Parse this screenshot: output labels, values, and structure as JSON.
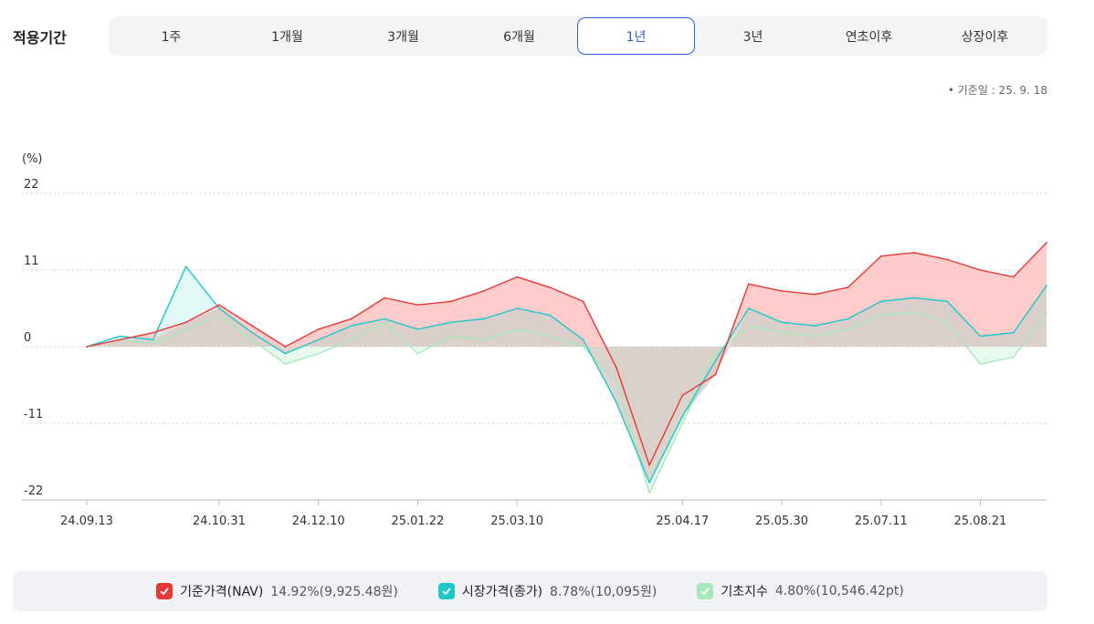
{
  "period": {
    "label": "적용기간",
    "options": [
      "1주",
      "1개월",
      "3개월",
      "6개월",
      "1년",
      "3년",
      "연초이후",
      "상장이후"
    ],
    "selected": "1년"
  },
  "base_date": "• 기준일 : 25. 9. 18",
  "colors": {
    "nav": "#e53935",
    "market": "#1ec8c8",
    "index": "#a6e8ba",
    "nav_fill": "#ffc9c9",
    "overlap_fill": "#d9cbc5"
  },
  "legend": [
    {
      "check": "check-icon",
      "name": "기준가격(NAV)",
      "value": "14.92%(9,925.48원)",
      "color": "#e53935"
    },
    {
      "check": "check-icon",
      "name": "시장가격(종가)",
      "value": "8.78%(10,095원)",
      "color": "#1ec8c8"
    },
    {
      "check": "check-icon",
      "name": "기초지수",
      "value": "4.80%(10,546.42pt)",
      "color": "#a6e8ba"
    }
  ],
  "chart_data": {
    "type": "area",
    "unit": "(%)",
    "ylim": [
      -22,
      22
    ],
    "yticks": [
      "22",
      "11",
      "0",
      "-11",
      "-22"
    ],
    "xticks": [
      "24.09.13",
      "24.10.31",
      "24.12.10",
      "25.01.22",
      "25.03.10",
      "25.04.17",
      "25.05.30",
      "25.07.11",
      "25.08.21"
    ],
    "grid": true,
    "x": [
      "24.09.13",
      "24.09.27",
      "24.10.11",
      "24.10.15",
      "24.10.31",
      "24.11.15",
      "24.11.29",
      "24.12.10",
      "24.12.24",
      "25.01.08",
      "25.01.22",
      "25.02.05",
      "25.02.19",
      "25.03.10",
      "25.03.20",
      "25.04.04",
      "25.04.08",
      "25.04.09",
      "25.04.17",
      "25.05.02",
      "25.05.16",
      "25.05.30",
      "25.06.13",
      "25.06.27",
      "25.07.11",
      "25.07.25",
      "25.08.08",
      "25.08.21",
      "25.09.04",
      "25.09.18"
    ],
    "series": [
      {
        "name": "기준가격(NAV)",
        "values": [
          0,
          1.0,
          2.0,
          3.5,
          6.0,
          3.0,
          0.0,
          2.5,
          4.0,
          7.0,
          6.0,
          6.5,
          8.0,
          10.0,
          8.5,
          6.5,
          -3.0,
          -17.0,
          -7.0,
          -4.0,
          9.0,
          8.0,
          7.5,
          8.5,
          13.0,
          13.5,
          12.5,
          11.0,
          10.0,
          14.92
        ]
      },
      {
        "name": "시장가격(종가)",
        "values": [
          0,
          1.5,
          1.0,
          11.5,
          5.5,
          2.0,
          -1.0,
          1.0,
          3.0,
          4.0,
          2.5,
          3.5,
          4.0,
          5.5,
          4.5,
          1.0,
          -8.0,
          -19.5,
          -10.0,
          -2.0,
          5.5,
          3.5,
          3.0,
          4.0,
          6.5,
          7.0,
          6.5,
          1.5,
          2.0,
          8.78
        ]
      },
      {
        "name": "기초지수",
        "values": [
          0,
          1.0,
          0.5,
          2.5,
          4.5,
          1.0,
          -2.5,
          -1.0,
          1.0,
          3.5,
          -1.0,
          1.5,
          1.0,
          2.5,
          1.5,
          0.0,
          -5.0,
          -21.0,
          -11.0,
          -1.0,
          3.0,
          2.0,
          1.5,
          2.5,
          4.5,
          5.0,
          3.5,
          -2.5,
          -1.5,
          4.8
        ]
      }
    ]
  }
}
